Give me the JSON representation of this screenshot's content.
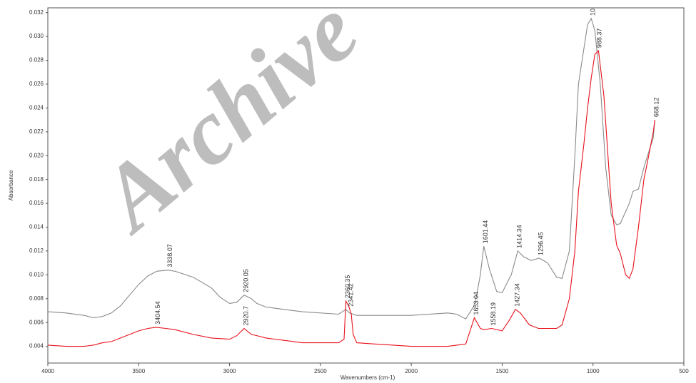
{
  "chart_data": {
    "type": "line",
    "watermark": "Archive",
    "x_label": "Wavenumbers (cm-1)",
    "y_label": "Absorbance",
    "xlim": [
      4000,
      500
    ],
    "xticks": [
      4000,
      3500,
      3000,
      2500,
      2000,
      1500,
      1000,
      500
    ],
    "ylim": [
      0.0026,
      0.0324
    ],
    "yticks": [
      0.004,
      0.006,
      0.008,
      {
        "value": 0.01,
        "label": "0.010"
      },
      0.012,
      0.014,
      0.016,
      0.018,
      {
        "value": 0.02,
        "label": "0.020"
      },
      0.022,
      0.024,
      0.026,
      0.028,
      {
        "value": 0.03,
        "label": "0.030"
      },
      0.032
    ],
    "series": [
      {
        "color": "#8a8a8a",
        "x": [
          4000,
          3900,
          3800,
          3750,
          3700,
          3650,
          3600,
          3550,
          3500,
          3450,
          3400,
          3338,
          3300,
          3200,
          3100,
          3050,
          3000,
          2960,
          2920,
          2880,
          2850,
          2800,
          2700,
          2600,
          2400,
          2360,
          2340,
          2300,
          2200,
          2000,
          1800,
          1750,
          1700,
          1650,
          1620,
          1601,
          1570,
          1530,
          1500,
          1450,
          1414,
          1380,
          1340,
          1296,
          1250,
          1200,
          1170,
          1130,
          1100,
          1080,
          1050,
          1030,
          1010,
          990,
          960,
          930,
          900,
          870,
          850,
          800,
          780,
          750,
          720,
          700,
          668,
          660
        ],
        "values": [
          0.0069,
          0.0068,
          0.0066,
          0.0064,
          0.0065,
          0.0068,
          0.0074,
          0.0083,
          0.0092,
          0.0099,
          0.0103,
          0.0104,
          0.0103,
          0.0098,
          0.0089,
          0.0081,
          0.0076,
          0.0077,
          0.0083,
          0.008,
          0.0076,
          0.0073,
          0.0071,
          0.0069,
          0.0067,
          0.0071,
          0.0068,
          0.0066,
          0.0066,
          0.0066,
          0.0068,
          0.0067,
          0.0063,
          0.0075,
          0.01,
          0.0124,
          0.0105,
          0.0086,
          0.0085,
          0.01,
          0.012,
          0.0115,
          0.0112,
          0.0114,
          0.011,
          0.0098,
          0.0097,
          0.012,
          0.02,
          0.026,
          0.029,
          0.031,
          0.0315,
          0.0305,
          0.026,
          0.019,
          0.015,
          0.0142,
          0.0143,
          0.016,
          0.017,
          0.0172,
          0.019,
          0.02,
          0.0215,
          0.023
        ]
      },
      {
        "color": "#e8101a",
        "x": [
          4000,
          3900,
          3800,
          3750,
          3700,
          3650,
          3600,
          3550,
          3500,
          3450,
          3404,
          3350,
          3300,
          3200,
          3100,
          3000,
          2960,
          2920,
          2880,
          2850,
          2800,
          2700,
          2600,
          2400,
          2370,
          2360,
          2345,
          2330,
          2320,
          2300,
          2200,
          2000,
          1800,
          1750,
          1700,
          1653,
          1620,
          1600,
          1558,
          1500,
          1460,
          1427,
          1400,
          1350,
          1300,
          1250,
          1200,
          1170,
          1130,
          1100,
          1080,
          1050,
          1030,
          1010,
          990,
          970,
          940,
          900,
          870,
          850,
          820,
          800,
          780,
          750,
          720,
          700,
          668,
          660
        ],
        "values": [
          0.0041,
          0.004,
          0.004,
          0.0041,
          0.0043,
          0.0044,
          0.0047,
          0.005,
          0.0053,
          0.0055,
          0.0056,
          0.0055,
          0.0054,
          0.005,
          0.0047,
          0.0046,
          0.0049,
          0.0055,
          0.005,
          0.0049,
          0.0047,
          0.0045,
          0.0043,
          0.0043,
          0.0046,
          0.0078,
          0.0074,
          0.0067,
          0.005,
          0.0043,
          0.0042,
          0.004,
          0.004,
          0.0041,
          0.0042,
          0.0064,
          0.0055,
          0.0054,
          0.0055,
          0.0053,
          0.0062,
          0.0071,
          0.0068,
          0.0058,
          0.0055,
          0.0055,
          0.0055,
          0.0058,
          0.008,
          0.012,
          0.017,
          0.021,
          0.024,
          0.0265,
          0.0285,
          0.0288,
          0.025,
          0.016,
          0.0125,
          0.0118,
          0.01,
          0.0097,
          0.0105,
          0.014,
          0.018,
          0.0195,
          0.022,
          0.023
        ]
      }
    ],
    "annotations": [
      {
        "text": "3338.07",
        "x": 3338,
        "y": 0.0104
      },
      {
        "text": "2920.05",
        "x": 2920,
        "y": 0.0083
      },
      {
        "text": "2360.35",
        "x": 2360,
        "y": 0.0078
      },
      {
        "text": "2341.42",
        "x": 2341,
        "y": 0.0071
      },
      {
        "text": "1601.44",
        "x": 1601,
        "y": 0.0124
      },
      {
        "text": "1414.34",
        "x": 1414,
        "y": 0.012
      },
      {
        "text": "1296.45",
        "x": 1296,
        "y": 0.0114
      },
      {
        "text": "10",
        "x": 1010,
        "y": 0.0315
      },
      {
        "text": "988.37",
        "x": 975,
        "y": 0.0288
      },
      {
        "text": "668.12",
        "x": 660,
        "y": 0.023
      },
      {
        "text": "3404.54",
        "x": 3404,
        "y": 0.0056
      },
      {
        "text": "2920.7",
        "x": 2920,
        "y": 0.0055
      },
      {
        "text": "1653.04",
        "x": 1653,
        "y": 0.0064
      },
      {
        "text": "1558.19",
        "x": 1558,
        "y": 0.0055
      },
      {
        "text": "1427.34",
        "x": 1427,
        "y": 0.0071
      }
    ]
  }
}
